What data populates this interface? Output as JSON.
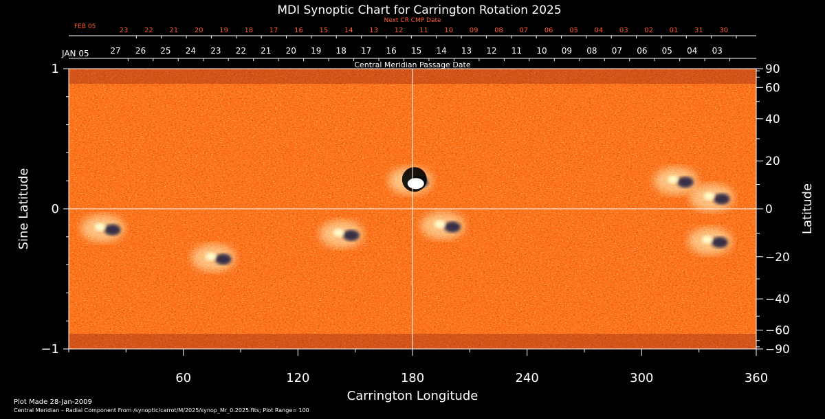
{
  "chart_data": {
    "type": "heatmap",
    "title": "MDI Synoptic Chart for Carrington Rotation 2025",
    "xlabel": "Carrington Longitude",
    "ylabel_left": "Sine Latitude",
    "ylabel_right": "Latitude",
    "xlim": [
      0,
      360
    ],
    "ylim": [
      -1,
      1
    ],
    "x_ticks": [
      60,
      120,
      180,
      240,
      300,
      360
    ],
    "y_ticks_left": [
      "1",
      "0",
      "−1"
    ],
    "y_ticks_right": [
      90,
      60,
      40,
      20,
      0,
      -20,
      -40,
      -60,
      -90
    ],
    "y_ticks_right_labels": [
      "90",
      "60",
      "40",
      "20",
      "0",
      "−20",
      "−40",
      "−60",
      "−90"
    ],
    "plot_range": 100,
    "colors": {
      "background": "#ff6a14",
      "positive": "#ffffd0",
      "negative": "#14143c",
      "grid": "#ffffff",
      "top_axis_text": "#ff5a30"
    },
    "top_axis_next_cr": {
      "label": "Next CR CMP Date",
      "month_label": "FEB 05",
      "dates": [
        "23",
        "22",
        "21",
        "20",
        "19",
        "18",
        "17",
        "16",
        "15",
        "14",
        "13",
        "12",
        "11",
        "10",
        "09",
        "08",
        "07",
        "06",
        "05",
        "04",
        "03",
        "02",
        "01",
        "31",
        "30"
      ]
    },
    "top_axis_cmp": {
      "label": "Central Meridian Passage Date",
      "month_label": "JAN 05",
      "dates": [
        "27",
        "26",
        "25",
        "24",
        "23",
        "22",
        "21",
        "20",
        "19",
        "18",
        "17",
        "16",
        "15",
        "14",
        "13",
        "12",
        "11",
        "10",
        "09",
        "08",
        "07",
        "06",
        "05",
        "04",
        "03"
      ]
    },
    "active_regions": [
      {
        "lon": 181,
        "sinlat": 0.2,
        "polarity": "mixed",
        "note": "sunspot"
      },
      {
        "lon": 320,
        "sinlat": 0.2,
        "polarity": "mixed"
      },
      {
        "lon": 339,
        "sinlat": 0.08,
        "polarity": "mixed"
      },
      {
        "lon": 198,
        "sinlat": -0.12,
        "polarity": "mixed"
      },
      {
        "lon": 145,
        "sinlat": -0.18,
        "polarity": "mixed"
      },
      {
        "lon": 78,
        "sinlat": -0.35,
        "polarity": "mixed"
      },
      {
        "lon": 20,
        "sinlat": -0.14,
        "polarity": "mixed"
      },
      {
        "lon": 338,
        "sinlat": -0.23,
        "polarity": "mixed"
      }
    ]
  },
  "footer": {
    "line1": "Plot Made 28-Jan-2009",
    "line2": "Central Meridian – Radial Component From /synoptic/carrot/M/2025/synop_Mr_0.2025.fits; Plot Range=  100"
  }
}
